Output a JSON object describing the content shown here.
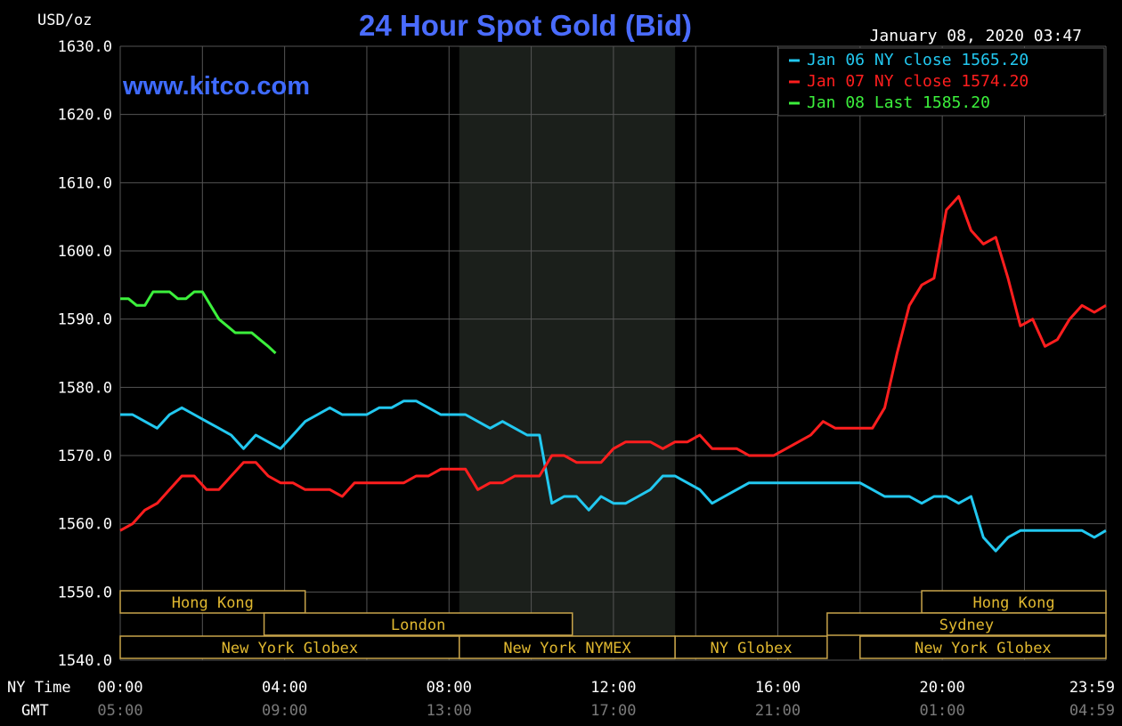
{
  "chart_data": {
    "type": "line",
    "title": "24 Hour Spot Gold (Bid)",
    "ylabel": "USD/oz",
    "website": "www.kitco.com",
    "timestamp": "January 08, 2020 03:47",
    "ylim": [
      1540,
      1630
    ],
    "y_ticks": [
      "1630.0",
      "1620.0",
      "1610.0",
      "1600.0",
      "1590.0",
      "1580.0",
      "1570.0",
      "1560.0",
      "1550.0",
      "1540.0"
    ],
    "x_row_labels": [
      "NY Time",
      "GMT"
    ],
    "x_ticks_ny": [
      "00:00",
      "04:00",
      "08:00",
      "12:00",
      "16:00",
      "20:00",
      "23:59"
    ],
    "x_ticks_gmt": [
      "05:00",
      "09:00",
      "13:00",
      "17:00",
      "21:00",
      "01:00",
      "04:59"
    ],
    "x_tick_hours": [
      0,
      4,
      8,
      12,
      16,
      20,
      23.983
    ],
    "shaded_region_hours": [
      8.25,
      13.5
    ],
    "grid": true,
    "legend_position": "top-right",
    "colors": {
      "background": "#000000",
      "grid": "#555555",
      "title": "#4a6cff",
      "website": "#3f6bff",
      "shade": "#1b1f1b"
    },
    "series": [
      {
        "name": "Jan 06 NY close 1565.20",
        "color": "#22c8f0",
        "x": [
          0,
          0.3,
          0.6,
          0.9,
          1.2,
          1.5,
          1.8,
          2.1,
          2.4,
          2.7,
          3.0,
          3.3,
          3.6,
          3.9,
          4.2,
          4.5,
          4.8,
          5.1,
          5.4,
          5.7,
          6.0,
          6.3,
          6.6,
          6.9,
          7.2,
          7.5,
          7.8,
          8.1,
          8.4,
          8.7,
          9.0,
          9.3,
          9.6,
          9.9,
          10.2,
          10.5,
          10.8,
          11.1,
          11.4,
          11.7,
          12.0,
          12.3,
          12.6,
          12.9,
          13.2,
          13.5,
          13.8,
          14.1,
          14.4,
          14.7,
          15.0,
          15.3,
          15.6,
          15.9,
          16.2,
          16.5,
          16.8,
          17.1,
          17.4,
          17.7,
          18.0,
          18.3,
          18.6,
          18.9,
          19.2,
          19.5,
          19.8,
          20.1,
          20.4,
          20.7,
          21.0,
          21.3,
          21.6,
          21.9,
          22.2,
          22.5,
          22.8,
          23.1,
          23.4,
          23.7,
          23.98
        ],
        "values": [
          1576,
          1576,
          1575,
          1574,
          1576,
          1577,
          1576,
          1575,
          1574,
          1573,
          1571,
          1573,
          1572,
          1571,
          1573,
          1575,
          1576,
          1577,
          1576,
          1576,
          1576,
          1577,
          1577,
          1578,
          1578,
          1577,
          1576,
          1576,
          1576,
          1575,
          1574,
          1575,
          1574,
          1573,
          1573,
          1563,
          1564,
          1564,
          1562,
          1564,
          1563,
          1563,
          1564,
          1565,
          1567,
          1567,
          1566,
          1565,
          1563,
          1564,
          1565,
          1566,
          1566,
          1566,
          1566,
          1566,
          1566,
          1566,
          1566,
          1566,
          1566,
          1565,
          1564,
          1564,
          1564,
          1563,
          1564,
          1564,
          1563,
          1564,
          1558,
          1556,
          1558,
          1559,
          1559,
          1559,
          1559,
          1559,
          1559,
          1558,
          1559
        ]
      },
      {
        "name": "Jan 07 NY close 1574.20",
        "color": "#ff1e1e",
        "x": [
          0,
          0.3,
          0.6,
          0.9,
          1.2,
          1.5,
          1.8,
          2.1,
          2.4,
          2.7,
          3.0,
          3.3,
          3.6,
          3.9,
          4.2,
          4.5,
          4.8,
          5.1,
          5.4,
          5.7,
          6.0,
          6.3,
          6.6,
          6.9,
          7.2,
          7.5,
          7.8,
          8.1,
          8.4,
          8.7,
          9.0,
          9.3,
          9.6,
          9.9,
          10.2,
          10.5,
          10.8,
          11.1,
          11.4,
          11.7,
          12.0,
          12.3,
          12.6,
          12.9,
          13.2,
          13.5,
          13.8,
          14.1,
          14.4,
          14.7,
          15.0,
          15.3,
          15.6,
          15.9,
          16.2,
          16.5,
          16.8,
          17.1,
          17.4,
          17.7,
          18.0,
          18.3,
          18.6,
          18.9,
          19.2,
          19.5,
          19.8,
          20.1,
          20.4,
          20.7,
          21.0,
          21.3,
          21.6,
          21.9,
          22.2,
          22.5,
          22.8,
          23.1,
          23.4,
          23.7,
          23.98
        ],
        "values": [
          1559,
          1560,
          1562,
          1563,
          1565,
          1567,
          1567,
          1565,
          1565,
          1567,
          1569,
          1569,
          1567,
          1566,
          1566,
          1565,
          1565,
          1565,
          1564,
          1566,
          1566,
          1566,
          1566,
          1566,
          1567,
          1567,
          1568,
          1568,
          1568,
          1565,
          1566,
          1566,
          1567,
          1567,
          1567,
          1570,
          1570,
          1569,
          1569,
          1569,
          1571,
          1572,
          1572,
          1572,
          1571,
          1572,
          1572,
          1573,
          1571,
          1571,
          1571,
          1570,
          1570,
          1570,
          1571,
          1572,
          1573,
          1575,
          1574,
          1574,
          1574,
          1574,
          1577,
          1585,
          1592,
          1595,
          1596,
          1606,
          1608,
          1603,
          1601,
          1602,
          1596,
          1589,
          1590,
          1586,
          1587,
          1590,
          1592,
          1591,
          1592
        ]
      },
      {
        "name": "Jan 08 Last 1585.20",
        "color": "#3cf03c",
        "x": [
          0,
          0.2,
          0.4,
          0.6,
          0.8,
          1.0,
          1.2,
          1.4,
          1.6,
          1.8,
          2.0,
          2.2,
          2.4,
          2.6,
          2.8,
          3.0,
          3.2,
          3.4,
          3.6,
          3.78
        ],
        "values": [
          1593,
          1593,
          1592,
          1592,
          1594,
          1594,
          1594,
          1593,
          1593,
          1594,
          1594,
          1592,
          1590,
          1589,
          1588,
          1588,
          1588,
          1587,
          1586,
          1585
        ]
      }
    ],
    "sessions": [
      {
        "label": "Hong Kong",
        "row": 0,
        "start_h": 0,
        "end_h": 4.5
      },
      {
        "label": "London",
        "row": 1,
        "start_h": 3.5,
        "end_h": 11.0
      },
      {
        "label": "New York Globex",
        "row": 2,
        "start_h": 0,
        "end_h": 8.25
      },
      {
        "label": "New York NYMEX",
        "row": 2,
        "start_h": 8.25,
        "end_h": 13.5
      },
      {
        "label": "NY Globex",
        "row": 2,
        "start_h": 13.5,
        "end_h": 17.2
      },
      {
        "label": "Hong Kong",
        "row": 0,
        "start_h": 19.5,
        "end_h": 23.983
      },
      {
        "label": "Sydney",
        "row": 1,
        "start_h": 17.2,
        "end_h": 23.983
      },
      {
        "label": "New York Globex",
        "row": 2,
        "start_h": 18.0,
        "end_h": 23.983
      }
    ]
  }
}
